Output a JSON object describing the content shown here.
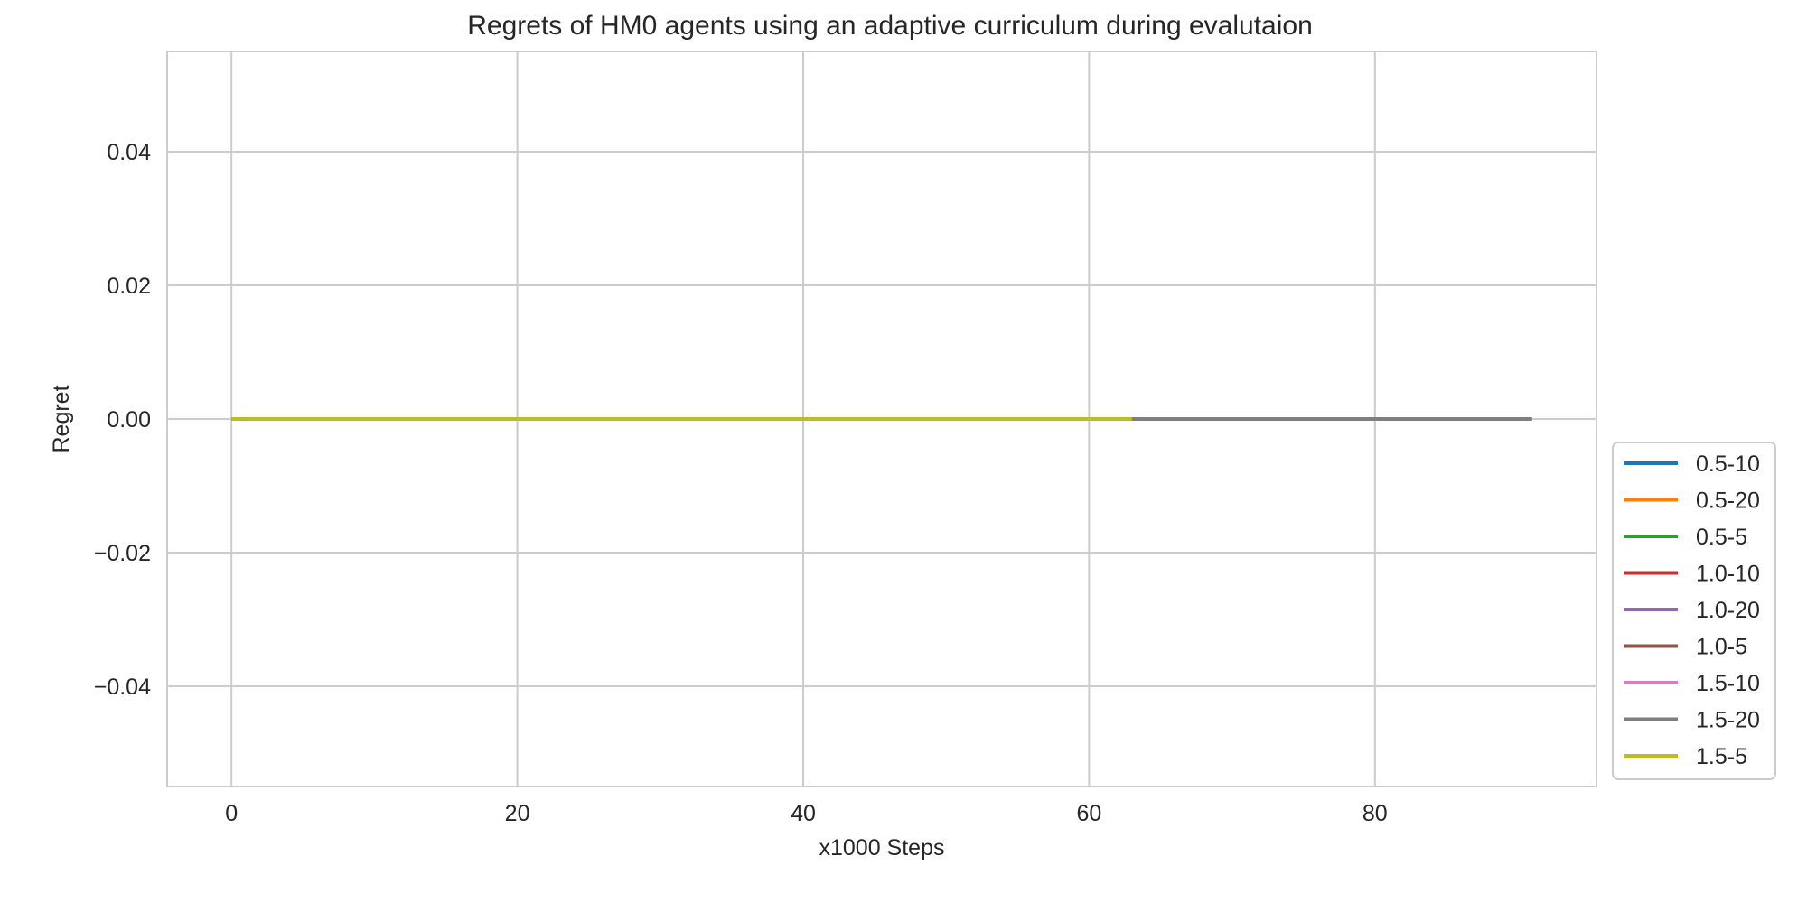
{
  "chart_data": {
    "type": "line",
    "title": "Regrets of HM0 agents using an adaptive curriculum during evalutaion",
    "xlabel": "x1000 Steps",
    "ylabel": "Regret",
    "xlim": [
      -4.5,
      95.5
    ],
    "ylim": [
      -0.055,
      0.055
    ],
    "xticks": [
      0,
      20,
      40,
      60,
      80
    ],
    "xtick_labels": [
      "0",
      "20",
      "40",
      "60",
      "80"
    ],
    "yticks": [
      -0.04,
      -0.02,
      0.0,
      0.02,
      0.04
    ],
    "ytick_labels": [
      "−0.04",
      "−0.02",
      "0.00",
      "0.02",
      "0.04"
    ],
    "grid": true,
    "legend_position": "right, outside plot area (lower)",
    "series": [
      {
        "name": "0.5-10",
        "color": "#1f77b4",
        "x": [
          0,
          63
        ],
        "y": [
          0,
          0
        ]
      },
      {
        "name": "0.5-20",
        "color": "#ff7f0e",
        "x": [
          0,
          63
        ],
        "y": [
          0,
          0
        ]
      },
      {
        "name": "0.5-5",
        "color": "#2ca02c",
        "x": [
          0,
          63
        ],
        "y": [
          0,
          0
        ]
      },
      {
        "name": "1.0-10",
        "color": "#d62728",
        "x": [
          0,
          63
        ],
        "y": [
          0,
          0
        ]
      },
      {
        "name": "1.0-20",
        "color": "#9467bd",
        "x": [
          0,
          69
        ],
        "y": [
          0,
          0
        ]
      },
      {
        "name": "1.0-5",
        "color": "#8c564b",
        "x": [
          0,
          69
        ],
        "y": [
          0,
          0
        ]
      },
      {
        "name": "1.5-10",
        "color": "#e377c2",
        "x": [
          0,
          63
        ],
        "y": [
          0,
          0
        ]
      },
      {
        "name": "1.5-20",
        "color": "#7f7f7f",
        "x": [
          0,
          91
        ],
        "y": [
          0,
          0
        ]
      },
      {
        "name": "1.5-5",
        "color": "#bcbd22",
        "x": [
          0,
          63
        ],
        "y": [
          0,
          0
        ]
      }
    ]
  }
}
